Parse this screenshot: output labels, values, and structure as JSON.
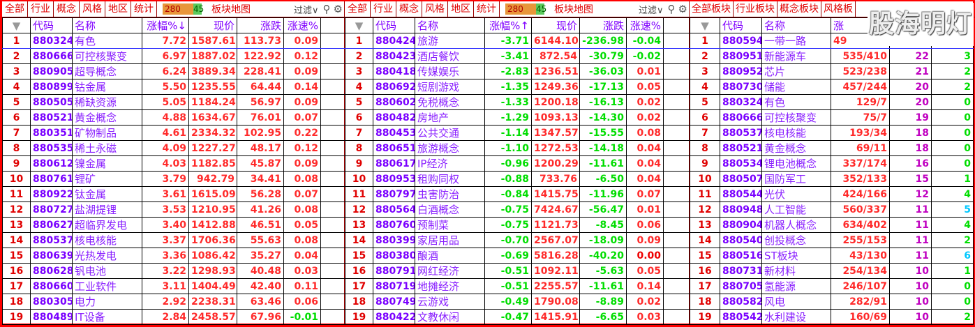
{
  "colors": {
    "up": "#ff2a2a",
    "down": "#00dd00",
    "code": "#7a00ff",
    "border": "#ff0000"
  },
  "panels": [
    {
      "tabs": [
        "全部",
        "行业",
        "概念",
        "风格",
        "地区",
        "统计"
      ],
      "badge": {
        "up": "280",
        "down": "45"
      },
      "map_label": "板块地图",
      "filter_label": "过滤∨",
      "icons": [
        "search-icon",
        "gear-icon"
      ],
      "columns": [
        "",
        "代码",
        "名称",
        "涨幅%↓",
        "现价",
        "涨跌",
        "涨速%"
      ],
      "rows": [
        [
          "1",
          "880324",
          "有色",
          "7.72",
          "1587.61",
          "113.73",
          "0.09"
        ],
        [
          "2",
          "880666",
          "可控核聚变",
          "6.97",
          "1887.02",
          "122.92",
          "0.12"
        ],
        [
          "3",
          "880905",
          "超导概念",
          "6.24",
          "3889.34",
          "228.41",
          "0.09"
        ],
        [
          "4",
          "880899",
          "钴金属",
          "5.50",
          "1235.55",
          "64.44",
          "0.14"
        ],
        [
          "5",
          "880505",
          "稀缺资源",
          "5.05",
          "1184.24",
          "56.97",
          "0.09"
        ],
        [
          "6",
          "880521",
          "黄金概念",
          "4.88",
          "1634.67",
          "76.01",
          "0.07"
        ],
        [
          "7",
          "880351",
          "矿物制品",
          "4.61",
          "2334.32",
          "102.95",
          "0.22"
        ],
        [
          "8",
          "880535",
          "稀土永磁",
          "4.09",
          "1227.27",
          "48.17",
          "0.12"
        ],
        [
          "9",
          "880612",
          "镍金属",
          "4.03",
          "1182.85",
          "45.87",
          "0.09"
        ],
        [
          "10",
          "880761",
          "锂矿",
          "3.79",
          "942.79",
          "34.41",
          "0.08"
        ],
        [
          "11",
          "880922",
          "钛金属",
          "3.61",
          "1615.09",
          "56.28",
          "0.07"
        ],
        [
          "12",
          "880727",
          "盐湖提锂",
          "3.53",
          "1210.95",
          "41.26",
          "0.08"
        ],
        [
          "13",
          "880627",
          "超临界发电",
          "3.40",
          "1412.88",
          "46.51",
          "0.05"
        ],
        [
          "14",
          "880537",
          "核电核能",
          "3.37",
          "1706.36",
          "55.63",
          "0.08"
        ],
        [
          "15",
          "880639",
          "光热发电",
          "3.36",
          "1086.42",
          "35.27",
          "0.04"
        ],
        [
          "16",
          "880628",
          "钒电池",
          "3.22",
          "1298.93",
          "40.48",
          "0.03"
        ],
        [
          "17",
          "880660",
          "工业软件",
          "3.11",
          "1404.49",
          "42.40",
          "0.11"
        ],
        [
          "18",
          "880305",
          "电力",
          "2.92",
          "2238.31",
          "63.46",
          "0.06"
        ],
        [
          "19",
          "880489",
          "IT设备",
          "2.84",
          "2458.57",
          "67.96",
          "-0.01"
        ]
      ]
    },
    {
      "tabs": [
        "全部",
        "行业",
        "概念",
        "风格",
        "地区",
        "统计"
      ],
      "badge": {
        "up": "280",
        "down": "45"
      },
      "map_label": "板块地图",
      "filter_label": "过滤∨",
      "icons": [
        "search-icon",
        "gear-icon"
      ],
      "columns": [
        "",
        "代码",
        "名称",
        "涨幅%↑",
        "现价",
        "涨跌",
        "涨速%"
      ],
      "rows": [
        [
          "1",
          "880424",
          "旅游",
          "-3.71",
          "6144.10",
          "-236.98",
          "-0.04"
        ],
        [
          "2",
          "880423",
          "酒店餐饮",
          "-3.41",
          "872.54",
          "-30.79",
          "-0.02"
        ],
        [
          "3",
          "880418",
          "传媒娱乐",
          "-2.83",
          "1236.51",
          "-36.03",
          "0.01"
        ],
        [
          "4",
          "880692",
          "短剧游戏",
          "-1.35",
          "1249.36",
          "-17.13",
          "0.05"
        ],
        [
          "5",
          "880602",
          "免税概念",
          "-1.33",
          "1200.18",
          "-16.13",
          "0.02"
        ],
        [
          "6",
          "880482",
          "房地产",
          "-1.29",
          "1093.13",
          "-14.30",
          "0.02"
        ],
        [
          "7",
          "880453",
          "公共交通",
          "-1.14",
          "1347.57",
          "-15.55",
          "0.08"
        ],
        [
          "8",
          "880651",
          "旅游概念",
          "-1.10",
          "1272.53",
          "-14.18",
          "0.04"
        ],
        [
          "9",
          "880617",
          "IP经济",
          "-0.96",
          "1200.29",
          "-11.61",
          "0.04"
        ],
        [
          "10",
          "880953",
          "租购同权",
          "-0.88",
          "733.76",
          "-6.50",
          "0.04"
        ],
        [
          "11",
          "880797",
          "虫害防治",
          "-0.84",
          "1415.75",
          "-11.96",
          "0.07"
        ],
        [
          "12",
          "880564",
          "白酒概念",
          "-0.75",
          "7424.67",
          "-56.47",
          "0.01"
        ],
        [
          "13",
          "880760",
          "预制菜",
          "-0.75",
          "1121.73",
          "-8.45",
          "0.06"
        ],
        [
          "14",
          "880399",
          "家居用品",
          "-0.70",
          "2567.07",
          "-18.09",
          "0.09"
        ],
        [
          "15",
          "880380",
          "酿酒",
          "-0.69",
          "5816.28",
          "-40.20",
          "0.00"
        ],
        [
          "16",
          "880791",
          "网红经济",
          "-0.51",
          "1092.11",
          "-5.63",
          "0.05"
        ],
        [
          "17",
          "880719",
          "地摊经济",
          "-0.51",
          "2255.57",
          "-11.61",
          "0.14"
        ],
        [
          "18",
          "880749",
          "云游戏",
          "-0.49",
          "1790.08",
          "-8.89",
          "0.02"
        ],
        [
          "19",
          "880422",
          "文教休闲",
          "-0.47",
          "1415.91",
          "-6.65",
          "0.03"
        ]
      ]
    },
    {
      "tabs": [
        "全部板块",
        "行业板块",
        "概念板块",
        "风格板"
      ],
      "columns": [
        "",
        "代码",
        "名称",
        "涨",
        "",
        ""
      ],
      "rows": [
        [
          "1",
          "880594",
          "一带一路",
          "49",
          "",
          ""
        ],
        [
          "2",
          "880951",
          "新能源车",
          "535/410",
          "22",
          "3"
        ],
        [
          "3",
          "880952",
          "芯片",
          "523/238",
          "21",
          "2"
        ],
        [
          "4",
          "880730",
          "储能",
          "457/244",
          "20",
          "2"
        ],
        [
          "5",
          "880324",
          "有色",
          "129/7",
          "20",
          "0"
        ],
        [
          "6",
          "880666",
          "可控核聚变",
          "75/7",
          "19",
          "0"
        ],
        [
          "7",
          "880537",
          "核电核能",
          "193/34",
          "18",
          "0"
        ],
        [
          "8",
          "880521",
          "黄金概念",
          "69/11",
          "18",
          "0"
        ],
        [
          "9",
          "880534",
          "锂电池概念",
          "337/174",
          "16",
          "0"
        ],
        [
          "10",
          "880507",
          "国防军工",
          "352/133",
          "15",
          "1"
        ],
        [
          "11",
          "880544",
          "光伏",
          "424/166",
          "12",
          "4"
        ],
        [
          "12",
          "880948",
          "人工智能",
          "560/337",
          "11",
          "5"
        ],
        [
          "13",
          "880904",
          "机器人概念",
          "634/402",
          "11",
          "4"
        ],
        [
          "14",
          "880540",
          "创投概念",
          "255/153",
          "11",
          "2"
        ],
        [
          "15",
          "880516",
          "ST板块",
          "43/130",
          "11",
          "6"
        ],
        [
          "16",
          "880731",
          "新材料",
          "254/134",
          "10",
          "1"
        ],
        [
          "17",
          "880705",
          "氢能源",
          "246/107",
          "10",
          "0"
        ],
        [
          "18",
          "880582",
          "风电",
          "282/91",
          "10",
          "0"
        ],
        [
          "19",
          "880542",
          "水利建设",
          "160/69",
          "10",
          "2"
        ]
      ]
    }
  ],
  "watermark": "股海明灯"
}
